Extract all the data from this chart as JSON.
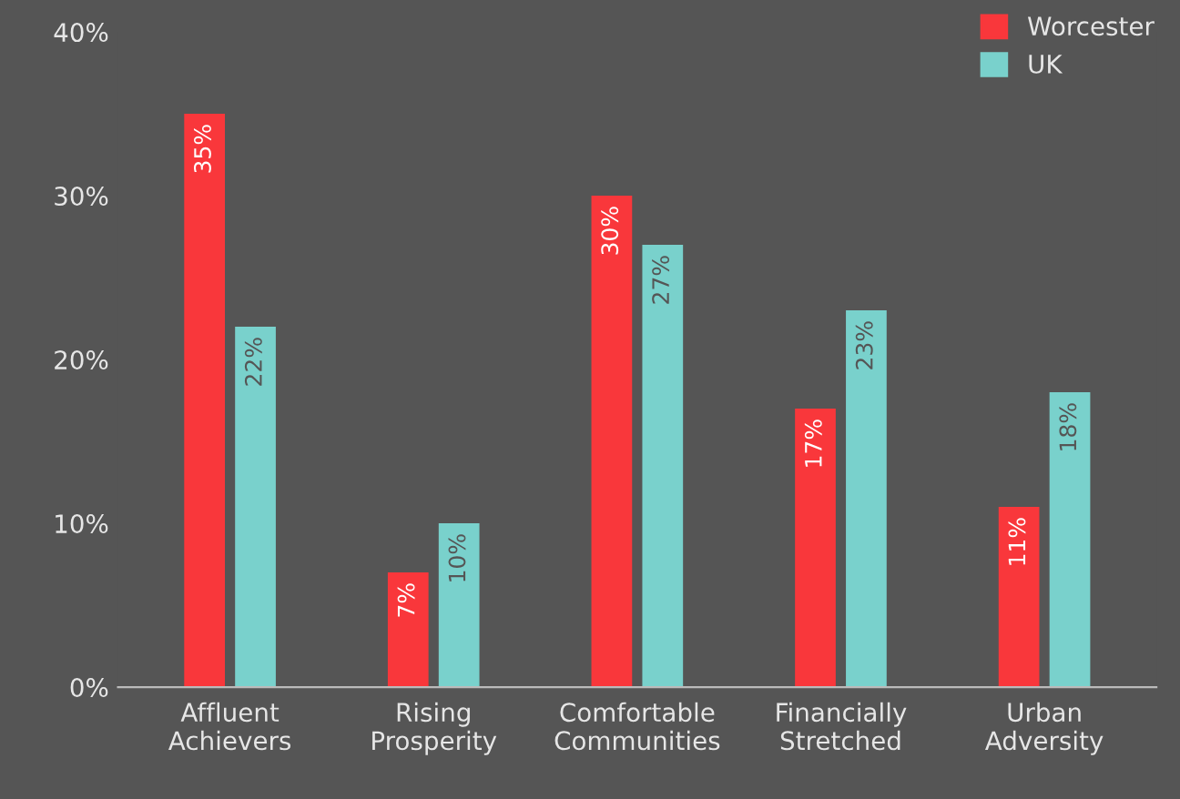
{
  "chart_data": {
    "type": "bar",
    "categories": [
      "Affluent\nAchievers",
      "Rising\nProsperity",
      "Comfortable\nCommunities",
      "Financially\nStretched",
      "Urban\nAdversity"
    ],
    "series": [
      {
        "name": "Worcester",
        "color": "#f9373b",
        "values": [
          35,
          7,
          30,
          17,
          11
        ],
        "value_labels": [
          "35%",
          "7%",
          "30%",
          "17%",
          "11%"
        ]
      },
      {
        "name": "UK",
        "color": "#79d1cc",
        "values": [
          22,
          10,
          27,
          23,
          18
        ],
        "value_labels": [
          "22%",
          "10%",
          "27%",
          "23%",
          "18%"
        ]
      }
    ],
    "ylim": [
      0,
      40
    ],
    "yticks": [
      {
        "value": 0,
        "label": "0%"
      },
      {
        "value": 10,
        "label": "10%"
      },
      {
        "value": 20,
        "label": "20%"
      },
      {
        "value": 30,
        "label": "30%"
      },
      {
        "value": 40,
        "label": "40%"
      }
    ],
    "grid": false,
    "legend": "top right"
  }
}
